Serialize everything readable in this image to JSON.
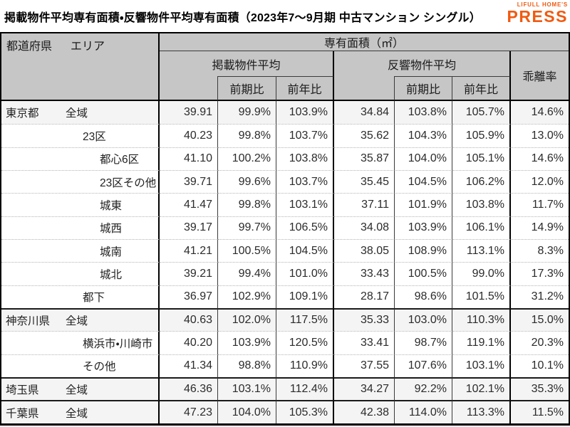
{
  "header": {
    "title": "掲載物件平均専有面積・反響物件平均専有面積（2023年7～9月期 中古マンション シングル）",
    "logo_top": "LIFULL HOME'S",
    "logo_main": "PRESS"
  },
  "table_header": {
    "prefecture": "都道府県",
    "area": "エリア",
    "floor_area": "専有面積（㎡）",
    "listed_avg": "掲載物件平均",
    "response_avg": "反響物件平均",
    "divergence_rate": "乖離率",
    "vs_prev_period": "前期比",
    "vs_prev_year": "前年比"
  },
  "chart_data": {
    "type": "table",
    "title": "掲載物件平均専有面積・反響物件平均専有面積（2023年7～9月期 中古マンション シングル）",
    "columns": [
      "都道府県　エリア",
      "掲載物件平均 専有面積(㎡)",
      "掲載物件平均 前期比",
      "掲載物件平均 前年比",
      "反響物件平均 専有面積(㎡)",
      "反響物件平均 前期比",
      "反響物件平均 前年比",
      "乖離率"
    ],
    "rows": [
      {
        "prefecture": "東京都",
        "area": "全域",
        "level": 1,
        "highlight": true,
        "group_start": false,
        "values": [
          "39.91",
          "99.9%",
          "103.9%",
          "34.84",
          "103.8%",
          "105.7%",
          "14.6%"
        ]
      },
      {
        "prefecture": "",
        "area": "23区",
        "level": 2,
        "highlight": false,
        "group_start": false,
        "values": [
          "40.23",
          "99.8%",
          "103.7%",
          "35.62",
          "104.3%",
          "105.9%",
          "13.0%"
        ]
      },
      {
        "prefecture": "",
        "area": "都心6区",
        "level": 3,
        "highlight": false,
        "group_start": false,
        "values": [
          "41.10",
          "100.2%",
          "103.8%",
          "35.87",
          "104.0%",
          "105.1%",
          "14.6%"
        ]
      },
      {
        "prefecture": "",
        "area": "23区その他",
        "level": 3,
        "highlight": false,
        "group_start": false,
        "values": [
          "39.71",
          "99.6%",
          "103.7%",
          "35.45",
          "104.5%",
          "106.2%",
          "12.0%"
        ]
      },
      {
        "prefecture": "",
        "area": "城東",
        "level": 3,
        "highlight": false,
        "group_start": false,
        "values": [
          "41.47",
          "99.8%",
          "103.1%",
          "37.11",
          "101.9%",
          "103.8%",
          "11.7%"
        ]
      },
      {
        "prefecture": "",
        "area": "城西",
        "level": 3,
        "highlight": false,
        "group_start": false,
        "values": [
          "39.17",
          "99.7%",
          "106.5%",
          "34.08",
          "103.9%",
          "106.1%",
          "14.9%"
        ]
      },
      {
        "prefecture": "",
        "area": "城南",
        "level": 3,
        "highlight": false,
        "group_start": false,
        "values": [
          "41.21",
          "100.5%",
          "104.5%",
          "38.05",
          "108.9%",
          "113.1%",
          "8.3%"
        ]
      },
      {
        "prefecture": "",
        "area": "城北",
        "level": 3,
        "highlight": false,
        "group_start": false,
        "values": [
          "39.21",
          "99.4%",
          "101.0%",
          "33.43",
          "100.5%",
          "99.0%",
          "17.3%"
        ]
      },
      {
        "prefecture": "",
        "area": "都下",
        "level": 2,
        "highlight": false,
        "group_start": false,
        "values": [
          "36.97",
          "102.9%",
          "109.1%",
          "28.17",
          "98.6%",
          "101.5%",
          "31.2%"
        ]
      },
      {
        "prefecture": "神奈川県",
        "area": "全域",
        "level": 1,
        "highlight": true,
        "group_start": true,
        "values": [
          "40.63",
          "102.0%",
          "117.5%",
          "35.33",
          "103.0%",
          "110.3%",
          "15.0%"
        ]
      },
      {
        "prefecture": "",
        "area": "横浜市・川崎市",
        "level": 2,
        "highlight": false,
        "group_start": false,
        "values": [
          "40.20",
          "103.9%",
          "120.5%",
          "33.41",
          "98.7%",
          "119.1%",
          "20.3%"
        ]
      },
      {
        "prefecture": "",
        "area": "その他",
        "level": 2,
        "highlight": false,
        "group_start": false,
        "values": [
          "41.34",
          "98.8%",
          "110.9%",
          "37.55",
          "107.6%",
          "103.1%",
          "10.1%"
        ]
      },
      {
        "prefecture": "埼玉県",
        "area": "全域",
        "level": 1,
        "highlight": true,
        "group_start": true,
        "values": [
          "46.36",
          "103.1%",
          "112.4%",
          "34.27",
          "92.2%",
          "102.1%",
          "35.3%"
        ]
      },
      {
        "prefecture": "千葉県",
        "area": "全域",
        "level": 1,
        "highlight": true,
        "group_start": true,
        "values": [
          "47.23",
          "104.0%",
          "105.3%",
          "42.38",
          "114.0%",
          "113.3%",
          "11.5%"
        ]
      }
    ]
  },
  "colors": {
    "brand": "#F15A10",
    "header_bg": "#C6C6C6",
    "highlight_row_bg": "#F4F4F4"
  }
}
